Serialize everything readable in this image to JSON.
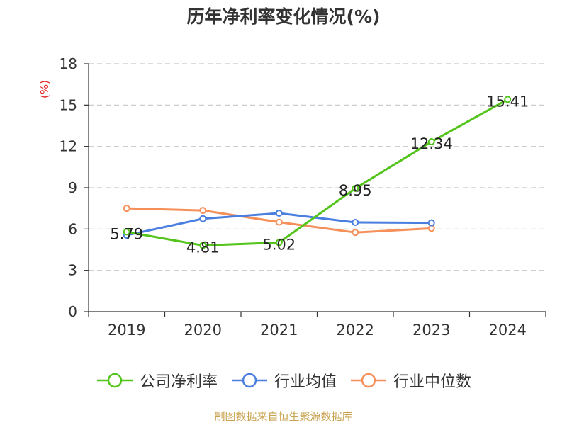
{
  "title": "历年净利率变化情况(%)",
  "footer": "制图数据来自恒生聚源数据库",
  "chart_data": {
    "type": "line",
    "title": "历年净利率变化情况(%)",
    "xlabel": "",
    "ylabel": "(%)",
    "categories": [
      "2019",
      "2020",
      "2021",
      "2022",
      "2023",
      "2024"
    ],
    "y_ticks": [
      "0",
      "3",
      "6",
      "9",
      "12",
      "15",
      "18"
    ],
    "ylim": [
      0,
      18
    ],
    "grid": true,
    "legend_position": "bottom",
    "series": [
      {
        "name": "公司净利率",
        "color": "#52c41a",
        "values": [
          5.79,
          4.81,
          5.02,
          8.95,
          12.34,
          15.41
        ],
        "labels": [
          "5.79",
          "4.81",
          "5.02",
          "8.95",
          "12.34",
          "15.41"
        ]
      },
      {
        "name": "行业均值",
        "color": "#4a7fe0",
        "values": [
          5.55,
          6.75,
          7.15,
          6.48,
          6.45,
          null
        ]
      },
      {
        "name": "行业中位数",
        "color": "#f5905a",
        "values": [
          7.5,
          7.35,
          6.5,
          5.75,
          6.05,
          null
        ]
      }
    ]
  }
}
